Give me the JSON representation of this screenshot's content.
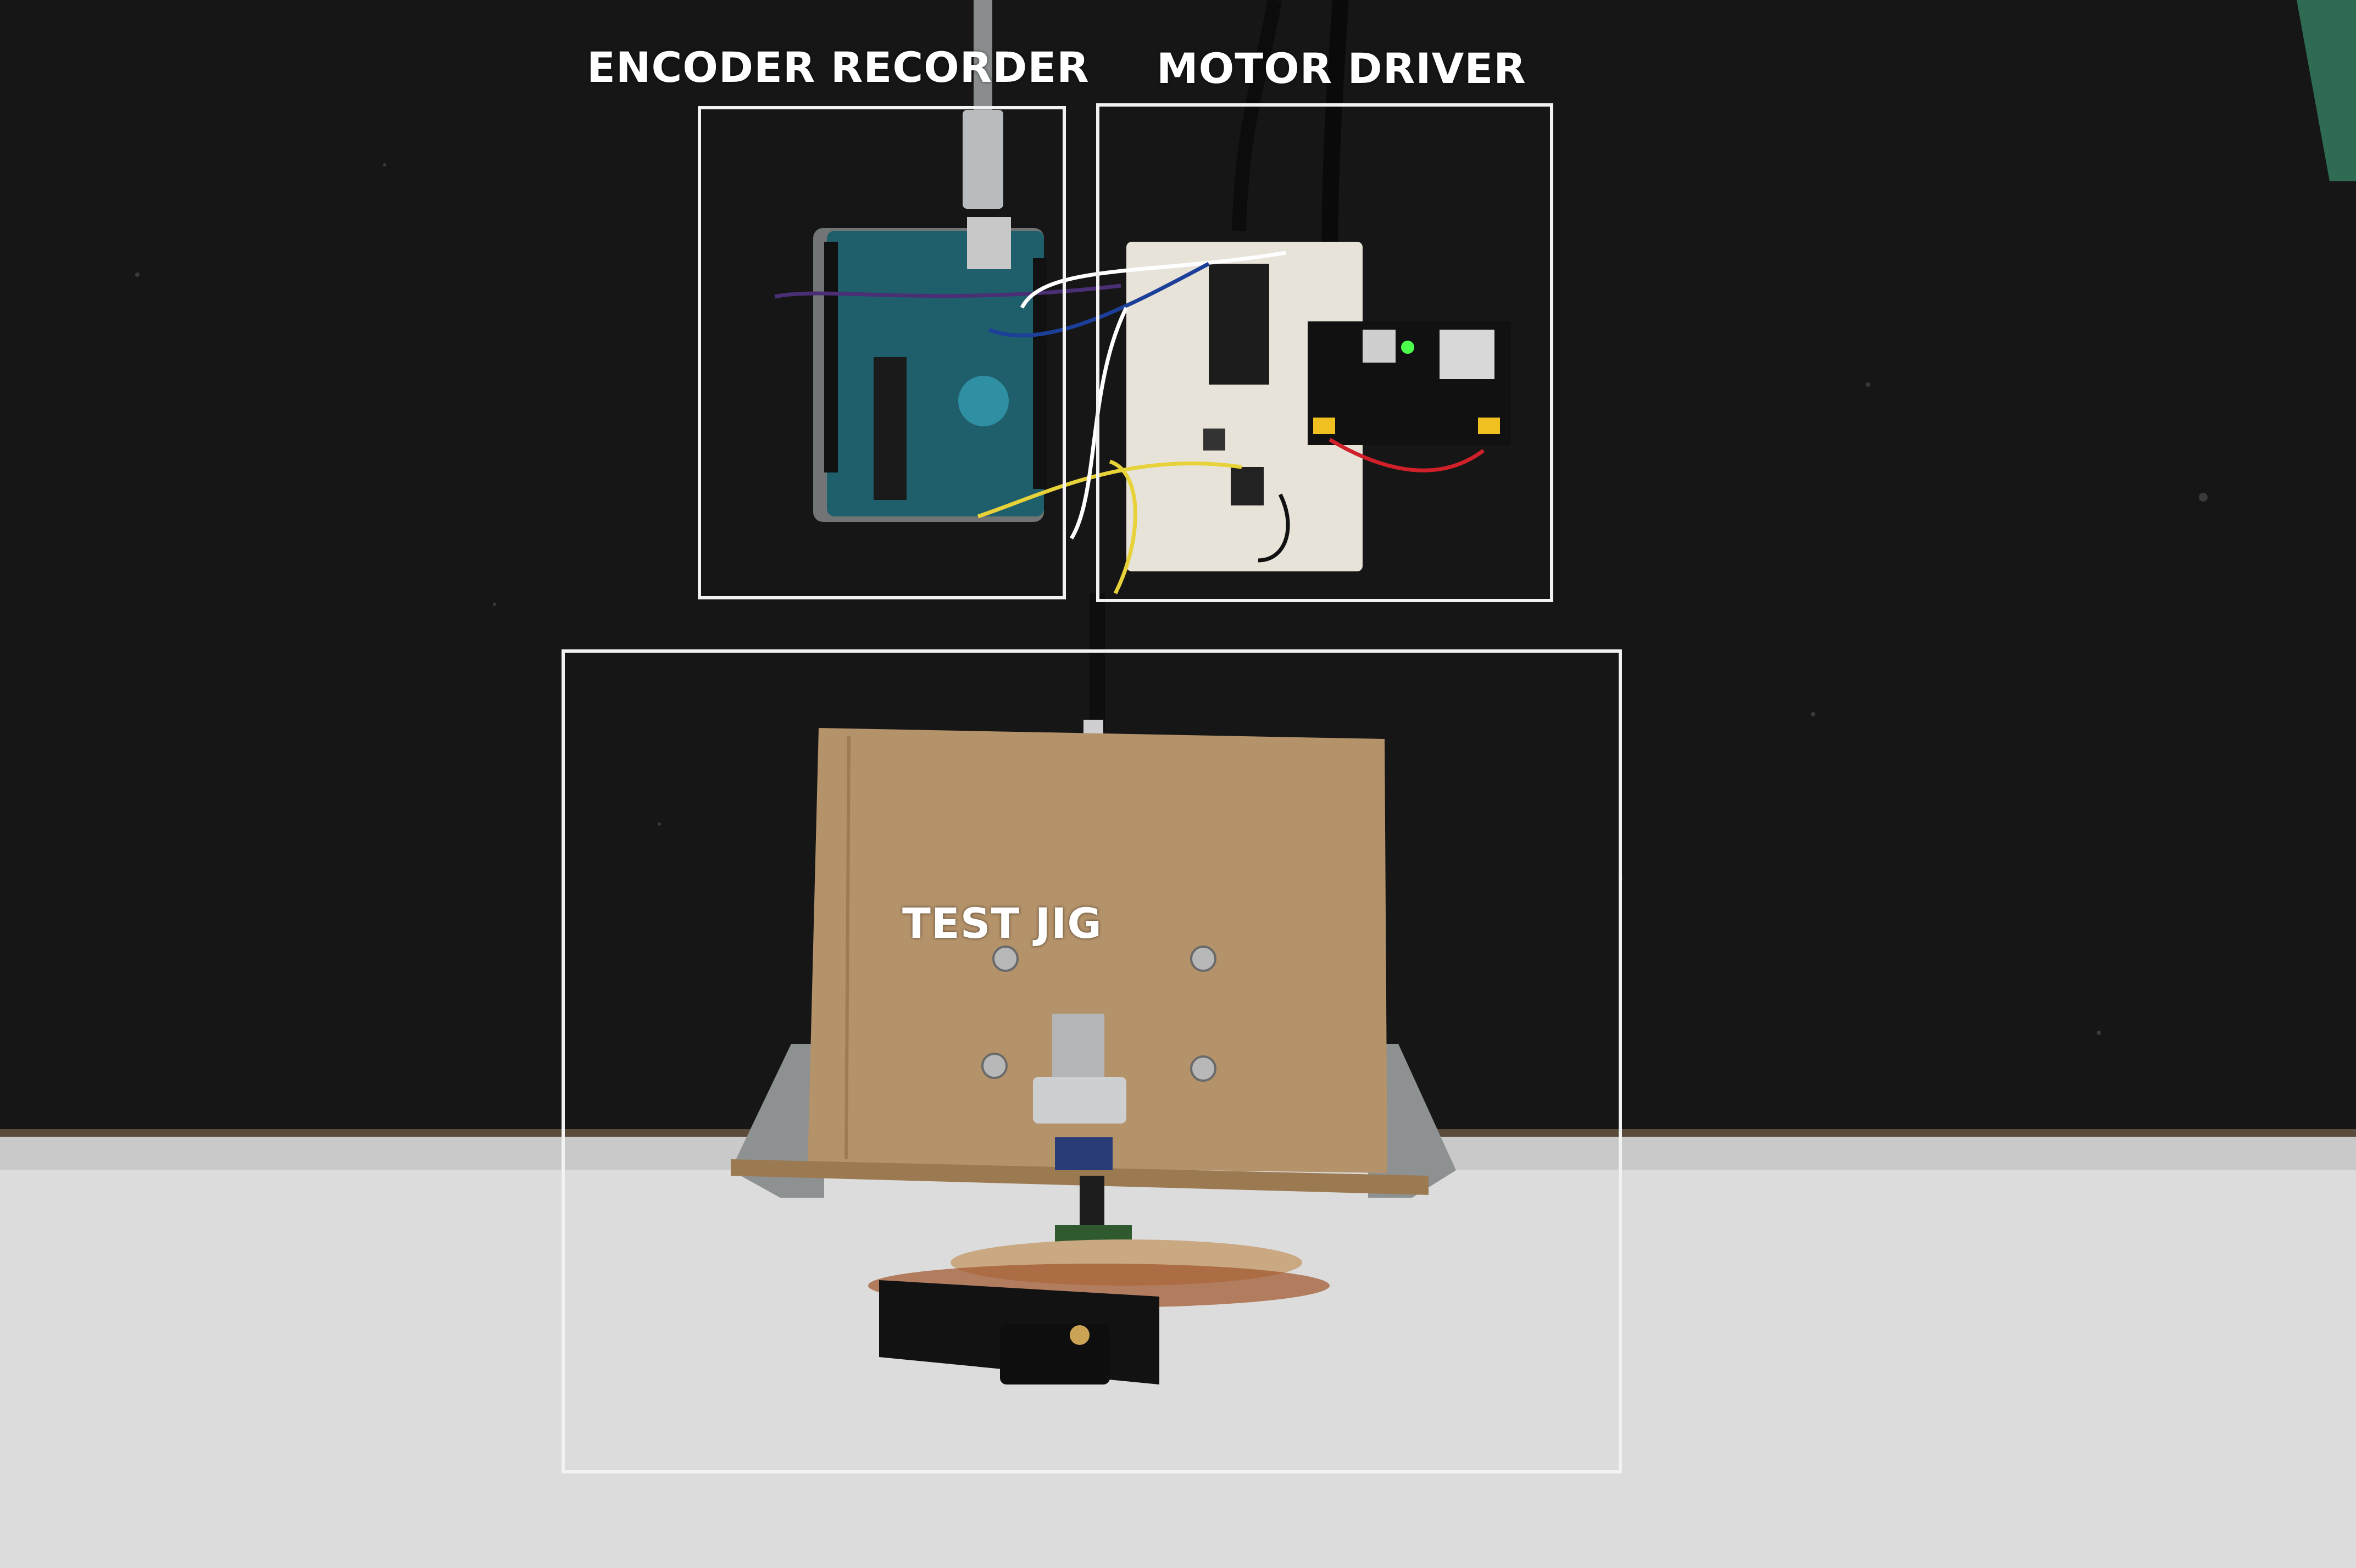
{
  "annotations": [
    {
      "id": "encoder-recorder",
      "label": "ENCODER RECORDER"
    },
    {
      "id": "motor-driver",
      "label": "MOTOR DRIVER"
    },
    {
      "id": "test-jig",
      "label": "TEST JIG"
    }
  ],
  "colors": {
    "table": "#161616",
    "floor": "#dcdcdc",
    "annotation": "#ffffff",
    "arduino_board": "#1f5f6b",
    "breadboard": "#e8e3d8",
    "hardboard": "#b4926a"
  }
}
